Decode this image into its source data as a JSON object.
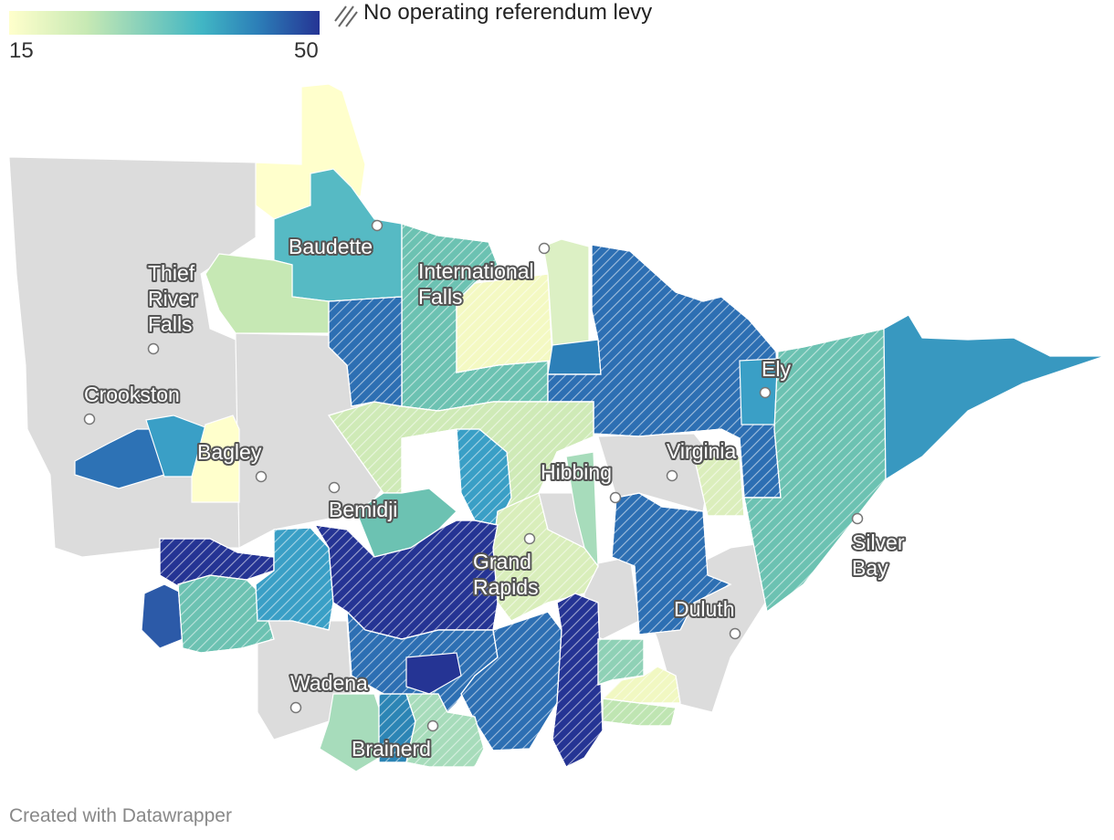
{
  "legend": {
    "min_label": "15",
    "max_label": "50",
    "hatch_label": "No operating referendum levy",
    "gradient_colors": [
      "#ffffcc",
      "#c7e9b4",
      "#7fcdbb",
      "#41b6c4",
      "#2c7fb8",
      "#253494"
    ]
  },
  "cities": [
    {
      "name": "Baudette"
    },
    {
      "name": "International\nFalls"
    },
    {
      "name": "Thief\nRiver\nFalls"
    },
    {
      "name": "Ely"
    },
    {
      "name": "Crookston"
    },
    {
      "name": "Bagley"
    },
    {
      "name": "Virginia"
    },
    {
      "name": "Hibbing"
    },
    {
      "name": "Bemidji"
    },
    {
      "name": "Grand\nRapids"
    },
    {
      "name": "Silver\nBay"
    },
    {
      "name": "Duluth"
    },
    {
      "name": "Wadena"
    },
    {
      "name": "Brainerd"
    }
  ],
  "colors": {
    "no_data": "#dcdcdc",
    "border": "#ffffff"
  },
  "credit": "Created with Datawrapper"
}
